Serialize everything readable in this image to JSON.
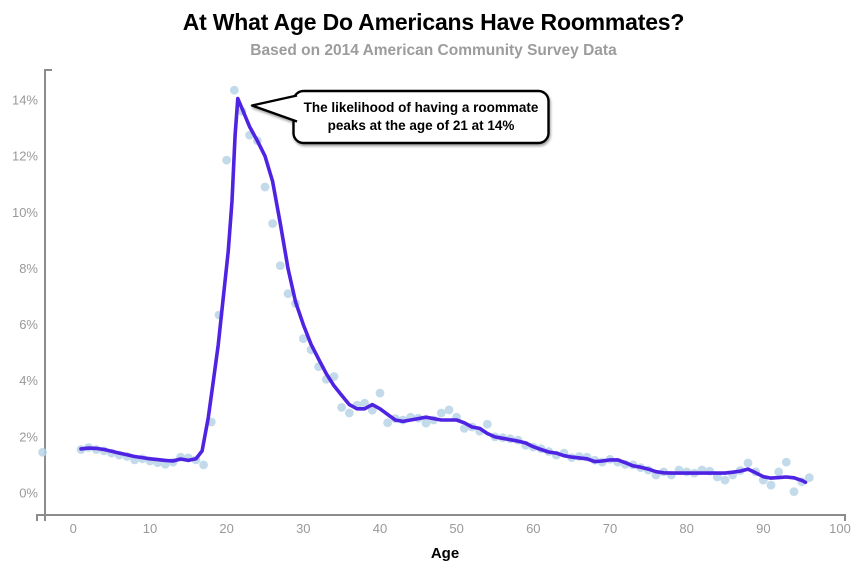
{
  "chart_data": {
    "type": "scatter+line",
    "title": "At What Age Do Americans Have Roommates?",
    "subtitle": "Based on 2014 American Community Survey Data",
    "xlabel": "Age",
    "ylabel": "",
    "xlim": [
      -4,
      101
    ],
    "ylim": [
      0,
      15.7
    ],
    "grid": false,
    "legend": "none",
    "x_tick_values": [
      0,
      10,
      20,
      30,
      40,
      50,
      60,
      70,
      80,
      90,
      100
    ],
    "x_tick_labels": [
      "0",
      "10",
      "20",
      "30",
      "40",
      "50",
      "60",
      "70",
      "80",
      "90",
      "100"
    ],
    "y_tick_values": [
      0,
      2,
      4,
      6,
      8,
      10,
      12,
      14
    ],
    "y_tick_labels": [
      "0%",
      "2%",
      "4%",
      "6%",
      "8%",
      "10%",
      "12%",
      "14%"
    ],
    "annotation": {
      "lines": [
        "The likelihood of having a roommate",
        "peaks at the age of 21 at 14%"
      ],
      "points_to": {
        "age": 21,
        "value_pct": 14
      }
    },
    "series": [
      {
        "name": "observed-share-with-roommate",
        "style": "scatter",
        "points": [
          [
            -4,
            1.45
          ],
          [
            1,
            1.55
          ],
          [
            2,
            1.62
          ],
          [
            3,
            1.55
          ],
          [
            4,
            1.5
          ],
          [
            5,
            1.42
          ],
          [
            6,
            1.35
          ],
          [
            7,
            1.3
          ],
          [
            8,
            1.18
          ],
          [
            9,
            1.22
          ],
          [
            10,
            1.14
          ],
          [
            11,
            1.08
          ],
          [
            12,
            1.02
          ],
          [
            13,
            1.1
          ],
          [
            14,
            1.28
          ],
          [
            15,
            1.25
          ],
          [
            16,
            1.18
          ],
          [
            17,
            1.0
          ],
          [
            18,
            2.53
          ],
          [
            19,
            6.34
          ],
          [
            20,
            11.86
          ],
          [
            21,
            14.35
          ],
          [
            22,
            13.6
          ],
          [
            23,
            12.75
          ],
          [
            24,
            12.55
          ],
          [
            25,
            10.9
          ],
          [
            26,
            9.6
          ],
          [
            27,
            8.1
          ],
          [
            28,
            7.1
          ],
          [
            29,
            6.75
          ],
          [
            30,
            5.5
          ],
          [
            31,
            5.1
          ],
          [
            32,
            4.5
          ],
          [
            33,
            4.05
          ],
          [
            34,
            4.15
          ],
          [
            35,
            3.05
          ],
          [
            36,
            2.85
          ],
          [
            37,
            3.13
          ],
          [
            38,
            3.2
          ],
          [
            39,
            2.95
          ],
          [
            40,
            3.56
          ],
          [
            41,
            2.5
          ],
          [
            42,
            2.65
          ],
          [
            43,
            2.6
          ],
          [
            44,
            2.7
          ],
          [
            45,
            2.67
          ],
          [
            46,
            2.49
          ],
          [
            47,
            2.6
          ],
          [
            48,
            2.85
          ],
          [
            49,
            2.96
          ],
          [
            50,
            2.7
          ],
          [
            51,
            2.3
          ],
          [
            52,
            2.35
          ],
          [
            53,
            2.2
          ],
          [
            54,
            2.45
          ],
          [
            55,
            2.0
          ],
          [
            56,
            1.97
          ],
          [
            57,
            1.93
          ],
          [
            58,
            1.88
          ],
          [
            59,
            1.7
          ],
          [
            60,
            1.64
          ],
          [
            61,
            1.58
          ],
          [
            62,
            1.48
          ],
          [
            63,
            1.35
          ],
          [
            64,
            1.42
          ],
          [
            65,
            1.26
          ],
          [
            66,
            1.3
          ],
          [
            67,
            1.28
          ],
          [
            68,
            1.17
          ],
          [
            69,
            1.1
          ],
          [
            70,
            1.2
          ],
          [
            71,
            1.1
          ],
          [
            72,
            1.02
          ],
          [
            73,
            1.0
          ],
          [
            74,
            0.9
          ],
          [
            75,
            0.82
          ],
          [
            76,
            0.64
          ],
          [
            77,
            0.75
          ],
          [
            78,
            0.64
          ],
          [
            79,
            0.82
          ],
          [
            80,
            0.75
          ],
          [
            81,
            0.71
          ],
          [
            82,
            0.82
          ],
          [
            83,
            0.78
          ],
          [
            84,
            0.57
          ],
          [
            85,
            0.46
          ],
          [
            86,
            0.64
          ],
          [
            87,
            0.8
          ],
          [
            88,
            1.07
          ],
          [
            89,
            0.75
          ],
          [
            90,
            0.46
          ],
          [
            91,
            0.28
          ],
          [
            92,
            0.75
          ],
          [
            93,
            1.1
          ],
          [
            94,
            0.05
          ],
          [
            95,
            0.4
          ],
          [
            96,
            0.55
          ]
        ]
      },
      {
        "name": "smoothed-trend",
        "style": "line",
        "points": [
          [
            1,
            1.57
          ],
          [
            2,
            1.6
          ],
          [
            3,
            1.59
          ],
          [
            4,
            1.55
          ],
          [
            5,
            1.49
          ],
          [
            6,
            1.42
          ],
          [
            7,
            1.36
          ],
          [
            8,
            1.3
          ],
          [
            9,
            1.26
          ],
          [
            10,
            1.22
          ],
          [
            11,
            1.19
          ],
          [
            12,
            1.16
          ],
          [
            13,
            1.14
          ],
          [
            14,
            1.21
          ],
          [
            15,
            1.16
          ],
          [
            16,
            1.22
          ],
          [
            16.8,
            1.5
          ],
          [
            17.6,
            2.67
          ],
          [
            18.2,
            3.85
          ],
          [
            18.9,
            5.27
          ],
          [
            19.5,
            6.8
          ],
          [
            20.2,
            8.6
          ],
          [
            20.7,
            10.4
          ],
          [
            21.1,
            12.75
          ],
          [
            21.45,
            14.05
          ],
          [
            22,
            13.7
          ],
          [
            23,
            13.05
          ],
          [
            24,
            12.55
          ],
          [
            25,
            12.0
          ],
          [
            26,
            11.1
          ],
          [
            27,
            9.6
          ],
          [
            28,
            8.0
          ],
          [
            29,
            6.8
          ],
          [
            30,
            6.0
          ],
          [
            31,
            5.3
          ],
          [
            32,
            4.77
          ],
          [
            33,
            4.25
          ],
          [
            34,
            3.82
          ],
          [
            35,
            3.48
          ],
          [
            36,
            3.15
          ],
          [
            37,
            3.0
          ],
          [
            38,
            3.0
          ],
          [
            39,
            3.15
          ],
          [
            40,
            3.0
          ],
          [
            41,
            2.8
          ],
          [
            42,
            2.6
          ],
          [
            43,
            2.55
          ],
          [
            44,
            2.6
          ],
          [
            45,
            2.65
          ],
          [
            46,
            2.7
          ],
          [
            47,
            2.65
          ],
          [
            48,
            2.6
          ],
          [
            49,
            2.6
          ],
          [
            50,
            2.6
          ],
          [
            51,
            2.5
          ],
          [
            52,
            2.35
          ],
          [
            53,
            2.3
          ],
          [
            54,
            2.12
          ],
          [
            55,
            2.0
          ],
          [
            56,
            1.95
          ],
          [
            57,
            1.9
          ],
          [
            58,
            1.85
          ],
          [
            59,
            1.78
          ],
          [
            60,
            1.65
          ],
          [
            61,
            1.55
          ],
          [
            62,
            1.46
          ],
          [
            63,
            1.42
          ],
          [
            64,
            1.33
          ],
          [
            65,
            1.28
          ],
          [
            66,
            1.25
          ],
          [
            67,
            1.22
          ],
          [
            68,
            1.12
          ],
          [
            69,
            1.14
          ],
          [
            70,
            1.18
          ],
          [
            71,
            1.18
          ],
          [
            72,
            1.08
          ],
          [
            73,
            0.97
          ],
          [
            74,
            0.92
          ],
          [
            75,
            0.85
          ],
          [
            76,
            0.76
          ],
          [
            77,
            0.72
          ],
          [
            78,
            0.71
          ],
          [
            79,
            0.71
          ],
          [
            80,
            0.71
          ],
          [
            81,
            0.71
          ],
          [
            82,
            0.71
          ],
          [
            83,
            0.71
          ],
          [
            84,
            0.71
          ],
          [
            85,
            0.71
          ],
          [
            86,
            0.74
          ],
          [
            87,
            0.78
          ],
          [
            88,
            0.85
          ],
          [
            89,
            0.72
          ],
          [
            90,
            0.58
          ],
          [
            91,
            0.53
          ],
          [
            92,
            0.55
          ],
          [
            93,
            0.57
          ],
          [
            94,
            0.54
          ],
          [
            95,
            0.45
          ],
          [
            95.5,
            0.38
          ]
        ]
      }
    ],
    "colors": {
      "line": "#4f23e2",
      "scatter": "#b8d4e8",
      "axis": "#8c8c8c",
      "tick_text": "#999999",
      "title_text": "#000000",
      "subtitle_text": "#9c9c9c",
      "annotation_fill": "#ffffff",
      "annotation_border": "#000000"
    }
  }
}
